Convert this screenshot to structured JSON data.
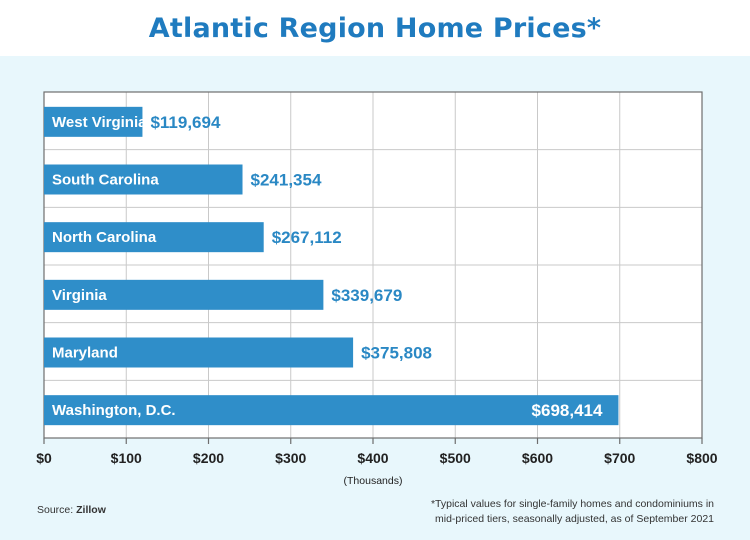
{
  "title": "Atlantic Region Home Prices*",
  "source_label": "Source:",
  "source_name": "Zillow",
  "footnote_line1": "*Typical values for single-family homes and condominiums in",
  "footnote_line2": "mid-priced tiers, seasonally adjusted, as of September 2021",
  "colors": {
    "bar": "#2f8ec9",
    "value_text": "#2a88c4",
    "background": "#e8f7fc",
    "title": "#1f7bbf"
  },
  "chart_data": {
    "type": "bar",
    "orientation": "horizontal",
    "categories": [
      "West Virginia",
      "South Carolina",
      "North Carolina",
      "Virginia",
      "Maryland",
      "Washington, D.C."
    ],
    "values": [
      119694,
      241354,
      267112,
      339679,
      375808,
      698414
    ],
    "value_labels": [
      "$119,694",
      "$241,354",
      "$267,112",
      "$339,679",
      "$375,808",
      "$698,414"
    ],
    "xlim": [
      0,
      800
    ],
    "xticks": [
      0,
      100,
      200,
      300,
      400,
      500,
      600,
      700,
      800
    ],
    "xtick_labels": [
      "$0",
      "$100",
      "$200",
      "$300",
      "$400",
      "$500",
      "$600",
      "$700",
      "$800"
    ],
    "xlabel": "(Thousands)",
    "grid": true
  }
}
